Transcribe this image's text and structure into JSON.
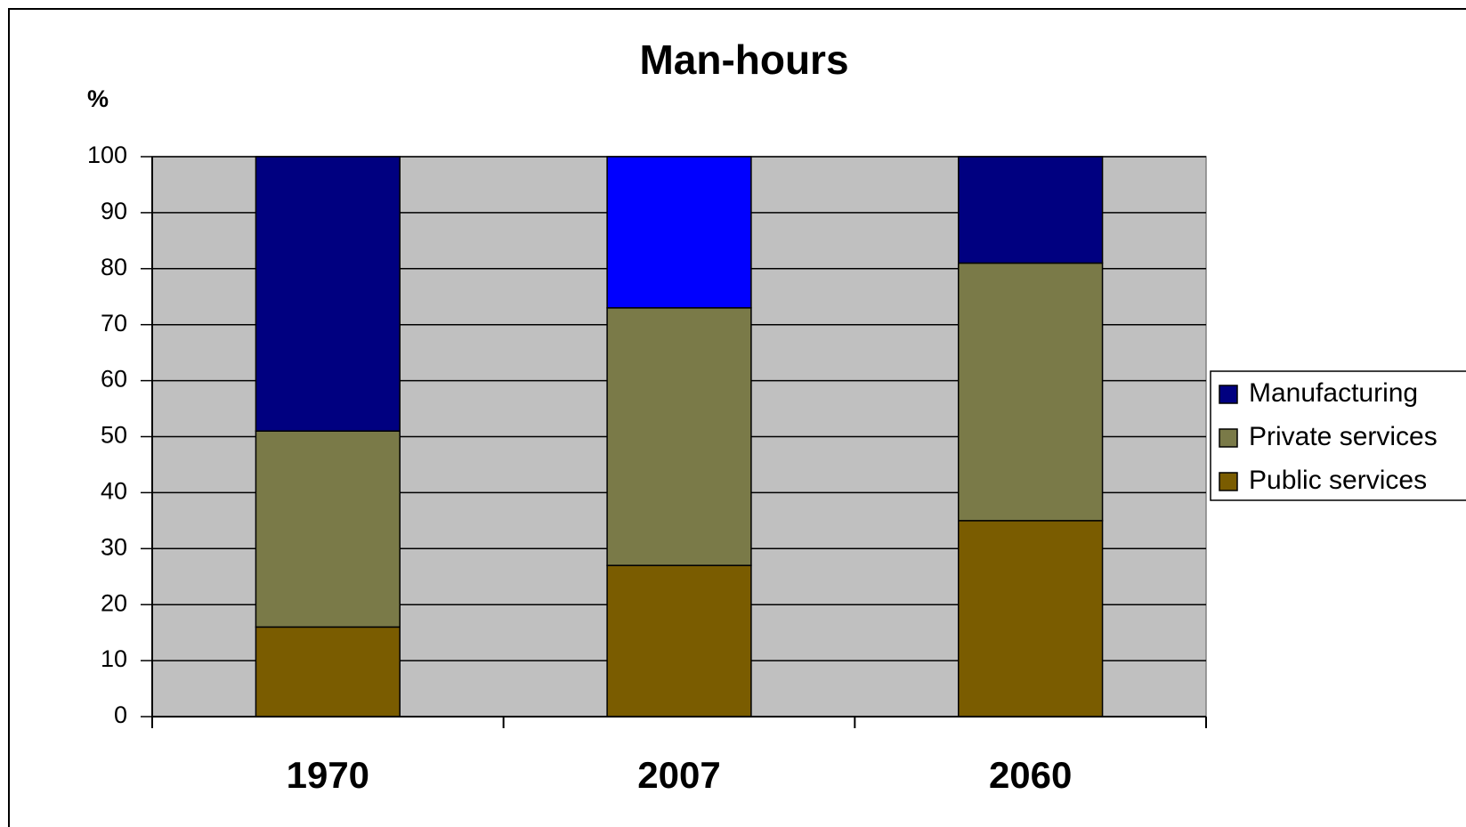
{
  "chart_data": {
    "type": "stacked_bar",
    "title": "Man-hours",
    "y_label": "%",
    "categories": [
      "1970",
      "2007",
      "2060"
    ],
    "series": [
      {
        "name": "Public services",
        "color": "#7a5c00",
        "values": [
          16,
          27,
          35
        ]
      },
      {
        "name": "Private services",
        "color": "#7a7a48",
        "values": [
          35,
          46,
          46
        ]
      },
      {
        "name": "Manufacturing",
        "color": "#000080",
        "colors": [
          "#000080",
          "#0000ff",
          "#000080"
        ],
        "values": [
          49,
          27,
          19
        ]
      }
    ],
    "ylim": [
      0,
      100
    ],
    "yticks": [
      0,
      10,
      20,
      30,
      40,
      50,
      60,
      70,
      80,
      90,
      100
    ],
    "grid": true,
    "legend": "right"
  }
}
